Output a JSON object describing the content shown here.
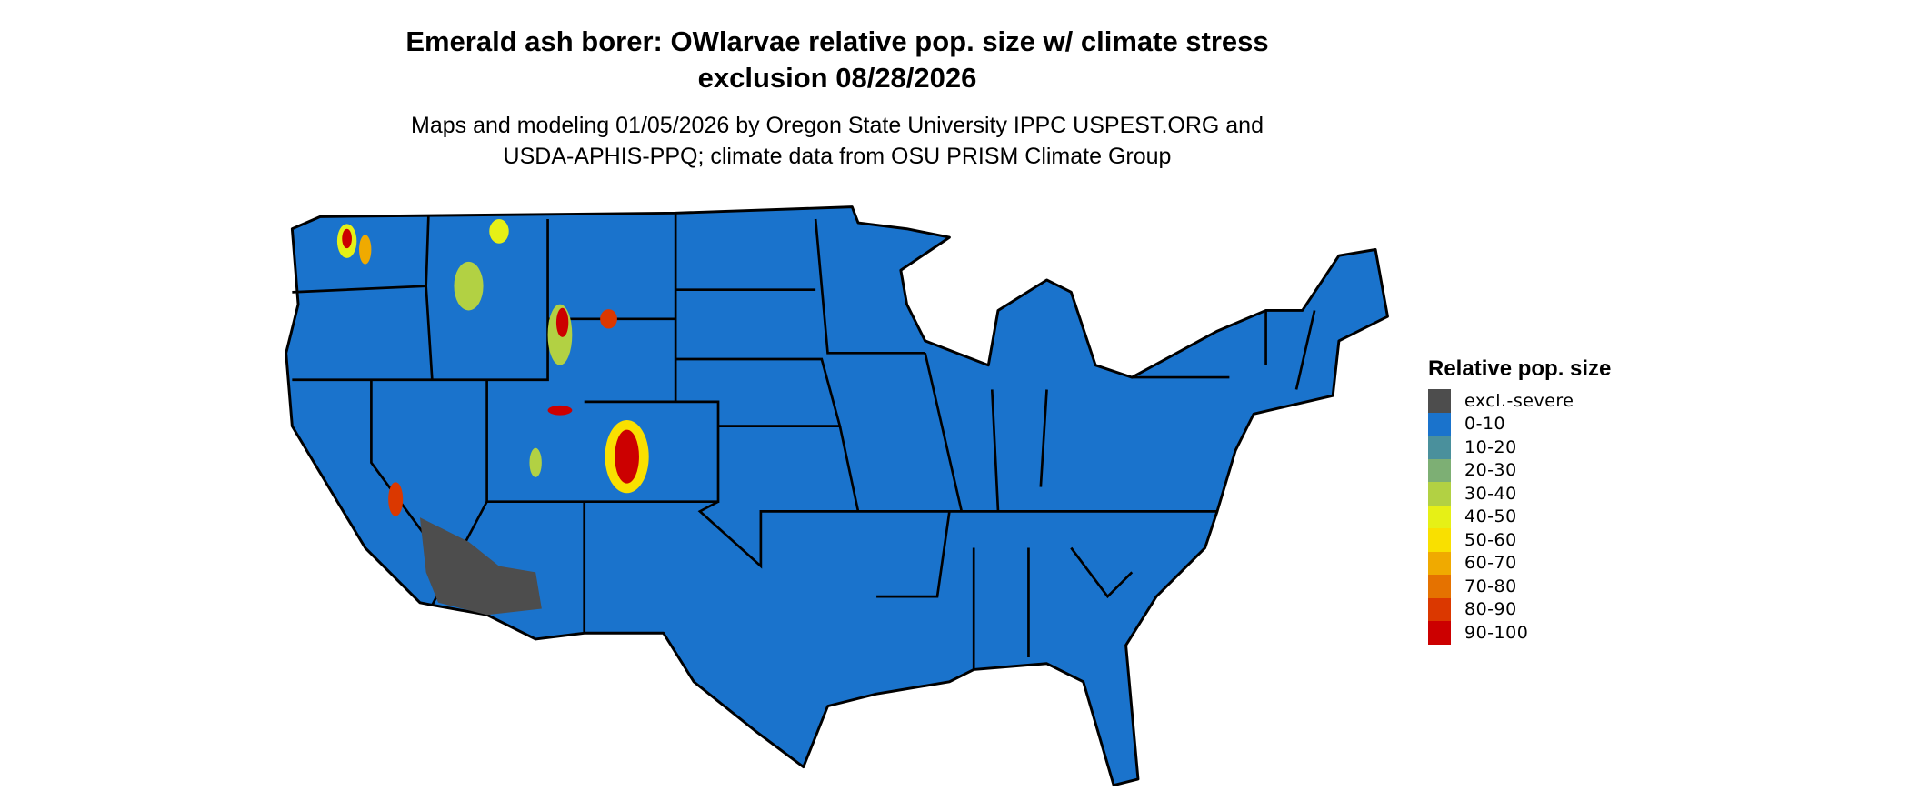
{
  "title": {
    "line1": "Emerald ash borer: OWlarvae relative pop. size w/ climate stress",
    "line2": "exclusion 08/28/2026"
  },
  "subtitle": {
    "line1": "Maps and modeling 01/05/2026 by Oregon State University IPPC USPEST.ORG and",
    "line2": "USDA-APHIS-PPQ; climate data from OSU PRISM Climate Group"
  },
  "legend": {
    "title": "Relative pop. size",
    "items": [
      {
        "label": "excl.-severe",
        "color": "#4d4d4d"
      },
      {
        "label": "0-10",
        "color": "#1a73cc"
      },
      {
        "label": "10-20",
        "color": "#4a909c"
      },
      {
        "label": "20-30",
        "color": "#7daf74"
      },
      {
        "label": "30-40",
        "color": "#b2d143"
      },
      {
        "label": "40-50",
        "color": "#e6f016"
      },
      {
        "label": "50-60",
        "color": "#f9e000"
      },
      {
        "label": "60-70",
        "color": "#f0aa00"
      },
      {
        "label": "70-80",
        "color": "#e57200"
      },
      {
        "label": "80-90",
        "color": "#db3800"
      },
      {
        "label": "90-100",
        "color": "#cc0000"
      }
    ]
  }
}
